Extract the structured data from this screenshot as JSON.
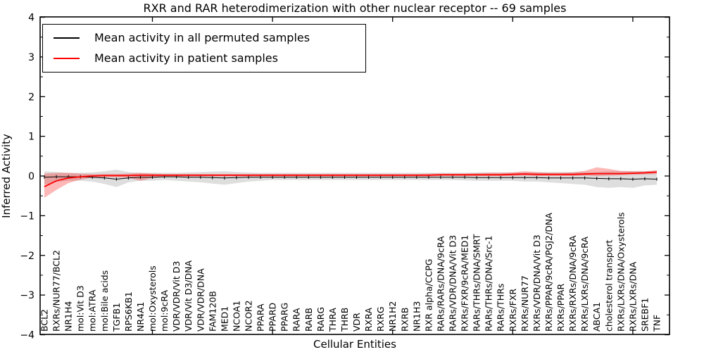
{
  "title": "RXR and RAR heterodimerization with other nuclear receptor -- 69 samples",
  "xlabel": "Cellular Entities",
  "ylabel": "Inferred Activity",
  "legend": {
    "items": [
      {
        "label": "Mean activity in all permuted samples",
        "color": "#000000"
      },
      {
        "label": "Mean activity in patient samples",
        "color": "#ff0000"
      }
    ]
  },
  "chart_data": {
    "type": "line",
    "title": "RXR and RAR heterodimerization with other nuclear receptor -- 69 samples",
    "xlabel": "Cellular Entities",
    "ylabel": "Inferred Activity",
    "ylim": [
      -4,
      4
    ],
    "yticks": [
      4,
      3,
      2,
      1,
      0,
      -1,
      -2,
      -3,
      -4
    ],
    "ytick_minor_step": 0.5,
    "xtick_indices": [
      9,
      19,
      29,
      39,
      49
    ],
    "grid": false,
    "legend_position": "upper left",
    "categories": [
      "BCL2",
      "RXRs/NUR77/BCL2",
      "NR1H4",
      "mol:Vit D3",
      "mol:ATRA",
      "mol:Bile acids",
      "TGFB1",
      "RPS6KB1",
      "NR4A1",
      "mol:Oxysterols",
      "mol:9cRA",
      "VDR/VDR/Vit D3",
      "VDR/Vit D3/DNA",
      "VDR/VDR/DNA",
      "FAM120B",
      "MED1",
      "NCOA1",
      "NCOR2",
      "PPARA",
      "PPARD",
      "PPARG",
      "RARA",
      "RARB",
      "RARG",
      "THRA",
      "THRB",
      "VDR",
      "RXRA",
      "RXRG",
      "NR1H2",
      "RXRB",
      "NR1H3",
      "RXR alpha/CCPG",
      "RARs/RARs/DNA/9cRA",
      "RARs/VDR/DNA/Vit D3",
      "RXRs/FXR/9cRA/MED1",
      "RARs/THRs/DNA/SMRT",
      "RARs/THRs/DNA/Src-1",
      "RARs/THRs",
      "RXRs/FXR",
      "RXRs/NUR77",
      "RXRs/VDR/DNA/Vit D3",
      "RXRs/PPAR/9cRA/PGJ2/DNA",
      "RXRs/PPAR",
      "RXRs/RXRs/DNA/9cRA",
      "RXRs/LXRs/DNA/9cRA",
      "ABCA1",
      "cholesterol transport",
      "RXRs/LXRs/DNA/Oxysterols",
      "RXRs/LXRs/DNA",
      "SREBF1",
      "TNF"
    ],
    "series": [
      {
        "name": "Mean activity in all permuted samples",
        "color": "#000000",
        "marker": "vertical-dash",
        "values": [
          -0.03,
          -0.02,
          -0.02,
          -0.02,
          -0.03,
          -0.05,
          -0.08,
          -0.05,
          -0.03,
          -0.03,
          -0.02,
          -0.02,
          -0.03,
          -0.03,
          -0.04,
          -0.05,
          -0.04,
          -0.03,
          -0.03,
          -0.03,
          -0.03,
          -0.03,
          -0.03,
          -0.03,
          -0.03,
          -0.03,
          -0.03,
          -0.03,
          -0.03,
          -0.03,
          -0.03,
          -0.03,
          -0.03,
          -0.03,
          -0.03,
          -0.03,
          -0.04,
          -0.04,
          -0.04,
          -0.04,
          -0.04,
          -0.04,
          -0.05,
          -0.05,
          -0.05,
          -0.05,
          -0.06,
          -0.07,
          -0.07,
          -0.08,
          -0.07,
          -0.08
        ]
      },
      {
        "name": "Mean activity in patient samples",
        "color": "#ff0000",
        "marker": "none",
        "values": [
          -0.27,
          -0.12,
          -0.05,
          -0.02,
          0.0,
          0.01,
          0.01,
          0.01,
          0.02,
          0.02,
          0.02,
          0.02,
          0.02,
          0.02,
          0.02,
          0.02,
          0.02,
          0.02,
          0.02,
          0.02,
          0.02,
          0.02,
          0.02,
          0.02,
          0.02,
          0.02,
          0.02,
          0.02,
          0.02,
          0.02,
          0.02,
          0.02,
          0.02,
          0.03,
          0.03,
          0.03,
          0.03,
          0.03,
          0.03,
          0.04,
          0.05,
          0.04,
          0.04,
          0.04,
          0.04,
          0.05,
          0.06,
          0.06,
          0.06,
          0.07,
          0.08,
          0.1
        ]
      }
    ],
    "bands": [
      {
        "name": "permuted-samples-range",
        "color": "#999999",
        "opacity": 0.32,
        "upper": [
          0.12,
          0.1,
          0.08,
          0.08,
          0.09,
          0.12,
          0.16,
          0.1,
          0.08,
          0.08,
          0.08,
          0.08,
          0.09,
          0.1,
          0.11,
          0.12,
          0.1,
          0.09,
          0.08,
          0.08,
          0.08,
          0.08,
          0.08,
          0.08,
          0.08,
          0.08,
          0.08,
          0.08,
          0.08,
          0.08,
          0.08,
          0.08,
          0.08,
          0.08,
          0.08,
          0.08,
          0.09,
          0.09,
          0.09,
          0.09,
          0.09,
          0.09,
          0.1,
          0.1,
          0.1,
          0.1,
          0.1,
          0.12,
          0.12,
          0.12,
          0.12,
          0.14
        ],
        "lower": [
          -0.22,
          -0.15,
          -0.12,
          -0.12,
          -0.14,
          -0.2,
          -0.28,
          -0.16,
          -0.12,
          -0.12,
          -0.1,
          -0.12,
          -0.14,
          -0.16,
          -0.19,
          -0.22,
          -0.18,
          -0.14,
          -0.12,
          -0.1,
          -0.1,
          -0.1,
          -0.1,
          -0.1,
          -0.1,
          -0.1,
          -0.1,
          -0.1,
          -0.1,
          -0.1,
          -0.1,
          -0.1,
          -0.1,
          -0.1,
          -0.1,
          -0.11,
          -0.12,
          -0.12,
          -0.12,
          -0.12,
          -0.14,
          -0.14,
          -0.16,
          -0.18,
          -0.2,
          -0.22,
          -0.28,
          -0.3,
          -0.28,
          -0.3,
          -0.24,
          -0.22
        ]
      },
      {
        "name": "patient-samples-range",
        "color": "#ff0000",
        "opacity": 0.28,
        "upper": [
          0.06,
          0.08,
          0.08,
          0.06,
          0.05,
          0.05,
          0.05,
          0.06,
          0.08,
          0.06,
          0.05,
          0.05,
          0.05,
          0.05,
          0.05,
          0.05,
          0.05,
          0.05,
          0.05,
          0.05,
          0.05,
          0.05,
          0.05,
          0.05,
          0.05,
          0.05,
          0.05,
          0.05,
          0.05,
          0.05,
          0.05,
          0.05,
          0.06,
          0.06,
          0.06,
          0.06,
          0.07,
          0.08,
          0.08,
          0.09,
          0.12,
          0.1,
          0.08,
          0.08,
          0.09,
          0.13,
          0.22,
          0.18,
          0.13,
          0.12,
          0.12,
          0.14
        ],
        "lower": [
          -0.55,
          -0.35,
          -0.18,
          -0.09,
          -0.04,
          -0.03,
          -0.03,
          -0.04,
          -0.12,
          -0.05,
          -0.02,
          -0.02,
          -0.01,
          -0.01,
          -0.01,
          -0.01,
          -0.01,
          -0.01,
          -0.01,
          -0.01,
          -0.01,
          -0.01,
          -0.01,
          -0.01,
          -0.01,
          -0.01,
          -0.01,
          -0.01,
          -0.01,
          -0.01,
          -0.01,
          -0.01,
          -0.01,
          0.0,
          0.0,
          0.0,
          0.0,
          0.0,
          0.0,
          0.0,
          0.01,
          0.0,
          0.0,
          0.0,
          0.0,
          0.01,
          0.0,
          0.01,
          0.02,
          0.03,
          0.04,
          0.05
        ]
      }
    ]
  }
}
